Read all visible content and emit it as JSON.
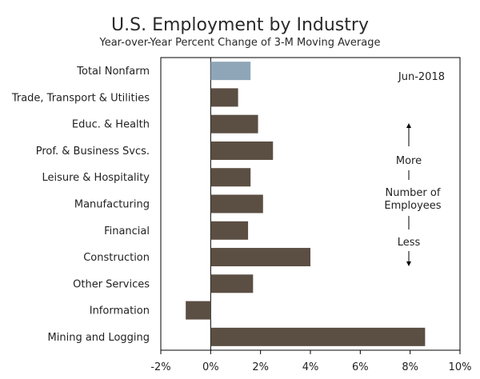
{
  "chart_data": {
    "type": "bar",
    "orientation": "horizontal",
    "title": "U.S. Employment by Industry",
    "subtitle": "Year-over-Year Percent Change of 3-M Moving Average",
    "categories": [
      "Total Nonfarm",
      "Trade, Transport & Utilities",
      "Educ. & Health",
      "Prof. & Business Svcs.",
      "Leisure & Hospitality",
      "Manufacturing",
      "Financial",
      "Construction",
      "Other Services",
      "Information",
      "Mining and Logging"
    ],
    "values": [
      1.6,
      1.1,
      1.9,
      2.5,
      1.6,
      2.1,
      1.5,
      4.0,
      1.7,
      -1.0,
      8.6
    ],
    "highlight_index": 0,
    "xlim": [
      -2,
      10
    ],
    "xticks": [
      -2,
      0,
      2,
      4,
      6,
      8,
      10
    ],
    "xtick_labels": [
      "-2%",
      "0%",
      "2%",
      "4%",
      "6%",
      "8%",
      "10%"
    ],
    "date_label": "Jun-2018",
    "annotation": {
      "top": "More",
      "middle_line1": "Number of",
      "middle_line2": "Employees",
      "bottom": "Less"
    },
    "colors": {
      "bar": "#5b4e43",
      "highlight": "#8fa6b8",
      "axis": "#000000"
    }
  }
}
